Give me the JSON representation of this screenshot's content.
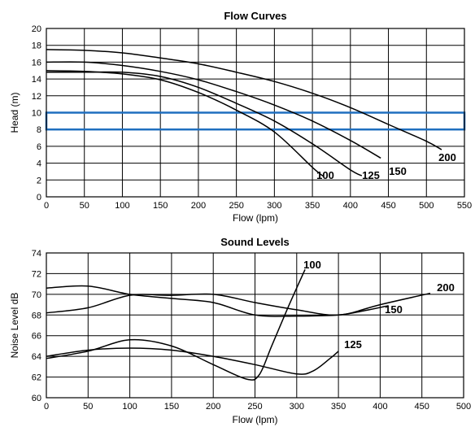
{
  "chart_data": [
    {
      "type": "line",
      "title": "Flow Curves",
      "xlabel": "Flow (lpm)",
      "ylabel": "Head (m)",
      "xlim": [
        0,
        550
      ],
      "ylim": [
        0,
        20
      ],
      "x_ticks": [
        "0",
        "50",
        "100",
        "150",
        "200",
        "250",
        "300",
        "350",
        "400",
        "450",
        "500",
        "550"
      ],
      "y_ticks": [
        "0",
        "2",
        "4",
        "6",
        "8",
        "10",
        "12",
        "14",
        "16",
        "18",
        "20"
      ],
      "grid": true,
      "highlight_band": {
        "y": [
          8,
          10
        ],
        "color": "#1f6fbf"
      },
      "series": [
        {
          "name": "100",
          "x": [
            0,
            50,
            100,
            150,
            200,
            250,
            300,
            350,
            365
          ],
          "y": [
            15.0,
            14.9,
            14.6,
            13.9,
            12.4,
            10.3,
            7.7,
            3.5,
            2.4
          ]
        },
        {
          "name": "125",
          "x": [
            0,
            50,
            100,
            150,
            200,
            250,
            300,
            350,
            400,
            415
          ],
          "y": [
            14.8,
            14.8,
            14.8,
            14.3,
            13.0,
            11.1,
            9.0,
            6.3,
            3.2,
            2.5
          ]
        },
        {
          "name": "150",
          "x": [
            0,
            50,
            100,
            150,
            200,
            250,
            300,
            350,
            400,
            440
          ],
          "y": [
            16.0,
            16.0,
            15.6,
            14.9,
            13.9,
            12.5,
            10.9,
            9.0,
            6.7,
            4.6
          ]
        },
        {
          "name": "200",
          "x": [
            0,
            50,
            100,
            150,
            200,
            250,
            300,
            350,
            400,
            450,
            500,
            520
          ],
          "y": [
            17.5,
            17.4,
            17.1,
            16.5,
            15.8,
            14.8,
            13.7,
            12.3,
            10.6,
            8.6,
            6.6,
            5.6
          ]
        }
      ]
    },
    {
      "type": "line",
      "title": "Sound Levels",
      "xlabel": "Flow (lpm)",
      "ylabel": "Noise Level dB",
      "xlim": [
        0,
        500
      ],
      "ylim": [
        60,
        74
      ],
      "x_ticks": [
        "0",
        "50",
        "100",
        "150",
        "200",
        "250",
        "300",
        "350",
        "400",
        "450",
        "500"
      ],
      "y_ticks": [
        "60",
        "62",
        "64",
        "66",
        "68",
        "70",
        "72",
        "74"
      ],
      "grid": true,
      "series": [
        {
          "name": "100",
          "x": [
            0,
            50,
            100,
            150,
            200,
            240,
            255,
            270,
            290,
            310
          ],
          "y": [
            63.8,
            64.5,
            65.6,
            65.0,
            63.2,
            61.8,
            62.2,
            65.0,
            68.8,
            72.4
          ]
        },
        {
          "name": "125",
          "x": [
            0,
            50,
            100,
            150,
            200,
            250,
            300,
            320,
            340,
            350
          ],
          "y": [
            64.0,
            64.6,
            64.8,
            64.6,
            64.0,
            63.2,
            62.3,
            62.6,
            63.8,
            64.5
          ]
        },
        {
          "name": "150",
          "x": [
            0,
            50,
            100,
            150,
            200,
            250,
            300,
            350,
            380,
            410
          ],
          "y": [
            70.6,
            70.8,
            70.0,
            69.6,
            69.2,
            68.0,
            67.9,
            68.0,
            68.4,
            68.9
          ]
        },
        {
          "name": "200",
          "x": [
            0,
            50,
            100,
            150,
            200,
            250,
            300,
            350,
            400,
            460
          ],
          "y": [
            68.2,
            68.7,
            69.9,
            69.9,
            70.0,
            69.2,
            68.5,
            68.0,
            69.0,
            70.1
          ]
        }
      ]
    }
  ]
}
